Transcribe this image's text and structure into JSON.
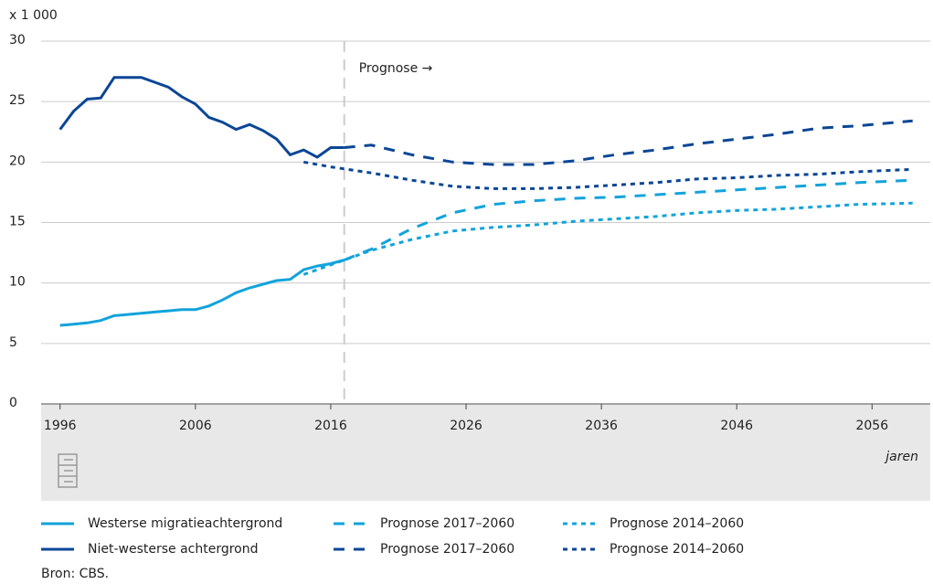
{
  "chart_data": {
    "type": "line",
    "y_unit_label": "x 1 000",
    "x_label": "jaren",
    "source": "Bron: CBS.",
    "annotation": {
      "text": "Prognose →",
      "x": 2017
    },
    "xlim": [
      1994.6,
      2060.3
    ],
    "xticks": [
      1996,
      2006,
      2016,
      2026,
      2036,
      2046,
      2056
    ],
    "ylim": [
      0,
      30
    ],
    "yticks": [
      0,
      5,
      10,
      15,
      20,
      25,
      30
    ],
    "grid": true,
    "series": [
      {
        "name": "Westerse migratieachtergrond",
        "color": "#12a3dc",
        "style": "solid",
        "x": [
          1996,
          1997,
          1998,
          1999,
          2000,
          2001,
          2002,
          2003,
          2004,
          2005,
          2006,
          2007,
          2008,
          2009,
          2010,
          2011,
          2012,
          2013,
          2014,
          2015,
          2016,
          2017
        ],
        "values": [
          6.5,
          6.6,
          6.7,
          6.9,
          7.3,
          7.4,
          7.5,
          7.6,
          7.7,
          7.8,
          7.8,
          8.1,
          8.6,
          9.2,
          9.6,
          9.9,
          10.2,
          10.3,
          11.1,
          11.4,
          11.6,
          11.9
        ]
      },
      {
        "name": "Niet-westerse achtergrond",
        "color": "#0a4696",
        "style": "solid",
        "x": [
          1996,
          1997,
          1998,
          1999,
          2000,
          2001,
          2002,
          2003,
          2004,
          2005,
          2006,
          2007,
          2008,
          2009,
          2010,
          2011,
          2012,
          2013,
          2014,
          2015,
          2016,
          2017
        ],
        "values": [
          22.7,
          24.2,
          25.2,
          25.3,
          27.0,
          27.0,
          27.0,
          26.6,
          26.2,
          25.4,
          24.8,
          23.7,
          23.3,
          22.7,
          23.1,
          22.6,
          21.9,
          20.6,
          21.0,
          20.4,
          21.2,
          21.2
        ]
      },
      {
        "name": "Prognose 2017–2060",
        "color": "#12a3dc",
        "style": "dashed",
        "x": [
          2017,
          2019,
          2022,
          2025,
          2028,
          2031,
          2034,
          2037,
          2040,
          2043,
          2046,
          2049,
          2052,
          2055,
          2059
        ],
        "values": [
          11.9,
          12.8,
          14.5,
          15.8,
          16.5,
          16.8,
          17.0,
          17.1,
          17.3,
          17.5,
          17.7,
          17.9,
          18.1,
          18.3,
          18.5
        ]
      },
      {
        "name": "Prognose 2017–2060",
        "color": "#0a4696",
        "style": "dashed",
        "x": [
          2017,
          2019,
          2022,
          2025,
          2028,
          2031,
          2034,
          2037,
          2040,
          2043,
          2046,
          2049,
          2052,
          2055,
          2059
        ],
        "values": [
          21.2,
          21.4,
          20.6,
          20.0,
          19.8,
          19.8,
          20.1,
          20.6,
          21.0,
          21.5,
          21.9,
          22.3,
          22.8,
          23.0,
          23.4
        ]
      },
      {
        "name": "Prognose 2014–2060",
        "color": "#12a3dc",
        "style": "dotted",
        "x": [
          2014,
          2016,
          2019,
          2022,
          2025,
          2028,
          2031,
          2034,
          2037,
          2040,
          2043,
          2046,
          2049,
          2052,
          2055,
          2059
        ],
        "values": [
          10.7,
          11.5,
          12.7,
          13.6,
          14.3,
          14.6,
          14.8,
          15.1,
          15.3,
          15.5,
          15.8,
          16.0,
          16.1,
          16.3,
          16.5,
          16.6
        ]
      },
      {
        "name": "Prognose 2014–2060",
        "color": "#0a4696",
        "style": "dotted",
        "x": [
          2014,
          2016,
          2019,
          2022,
          2025,
          2028,
          2031,
          2034,
          2037,
          2040,
          2043,
          2046,
          2049,
          2052,
          2055,
          2059
        ],
        "values": [
          20.0,
          19.6,
          19.1,
          18.5,
          18.0,
          17.8,
          17.8,
          17.9,
          18.1,
          18.3,
          18.6,
          18.7,
          18.9,
          19.0,
          19.2,
          19.4
        ]
      }
    ]
  }
}
